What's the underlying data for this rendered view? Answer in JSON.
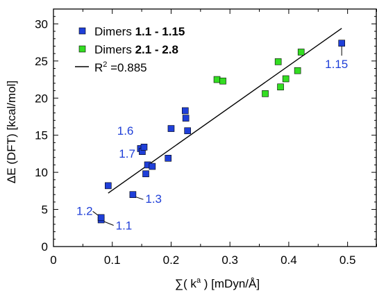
{
  "chart_data": {
    "type": "scatter",
    "xlabel_prefix": "∑( k",
    "xlabel_sup": "a",
    "xlabel_suffix": " ) [mDyn/Å]",
    "ylabel": "ΔE (DFT) [kcal/mol]",
    "xlim": [
      0,
      0.55
    ],
    "ylim": [
      0,
      32
    ],
    "x_ticks": [
      "0",
      "0.1",
      "0.2",
      "0.3",
      "0.4",
      "0.5"
    ],
    "y_ticks": [
      "0",
      "5",
      "10",
      "15",
      "20",
      "25",
      "30"
    ],
    "grid": false,
    "legend_position": "top-left",
    "legend": [
      {
        "prefix": "Dimers ",
        "bold": "1.1 - 1.15",
        "color": "#1f3fd8",
        "marker": "square"
      },
      {
        "prefix": "Dimers ",
        "bold": "2.1 - 2.8",
        "color": "#33dd22",
        "marker": "square"
      },
      {
        "prefix": "R",
        "sup": "2",
        "suffix": " =0.885",
        "color": "#000000",
        "marker": "line"
      }
    ],
    "series": [
      {
        "color": "#1f3fd8",
        "points": [
          [
            0.081,
            3.6
          ],
          [
            0.081,
            3.9
          ],
          [
            0.093,
            8.2
          ],
          [
            0.135,
            7.0
          ],
          [
            0.148,
            13.2
          ],
          [
            0.151,
            12.8
          ],
          [
            0.154,
            13.4
          ],
          [
            0.157,
            9.8
          ],
          [
            0.16,
            11.0
          ],
          [
            0.168,
            10.8
          ],
          [
            0.195,
            11.9
          ],
          [
            0.2,
            15.9
          ],
          [
            0.224,
            18.3
          ],
          [
            0.225,
            17.3
          ],
          [
            0.228,
            15.6
          ],
          [
            0.49,
            27.4
          ]
        ]
      },
      {
        "color": "#33dd22",
        "points": [
          [
            0.278,
            22.5
          ],
          [
            0.288,
            22.3
          ],
          [
            0.36,
            20.6
          ],
          [
            0.382,
            24.9
          ],
          [
            0.386,
            21.5
          ],
          [
            0.395,
            22.6
          ],
          [
            0.415,
            23.7
          ],
          [
            0.421,
            26.2
          ]
        ]
      }
    ],
    "fit_line": {
      "x": [
        0.093,
        0.49
      ],
      "y": [
        7.2,
        29.4
      ],
      "color": "#000000"
    },
    "annotations": [
      {
        "text": "1.15",
        "x": 0.49,
        "y": 27.4,
        "leader": false
      },
      {
        "text": "1.6",
        "x": 0.148,
        "y": 13.2,
        "leader": false
      },
      {
        "text": "1.7",
        "x": 0.151,
        "y": 12.8,
        "leader": false
      },
      {
        "text": "1.3",
        "x": 0.135,
        "y": 7.0,
        "leader": true
      },
      {
        "text": "1.2",
        "x": 0.081,
        "y": 3.9,
        "leader": true
      },
      {
        "text": "1.1",
        "x": 0.081,
        "y": 3.6,
        "leader": true
      }
    ],
    "annotation_color": "#1f3fd8"
  }
}
